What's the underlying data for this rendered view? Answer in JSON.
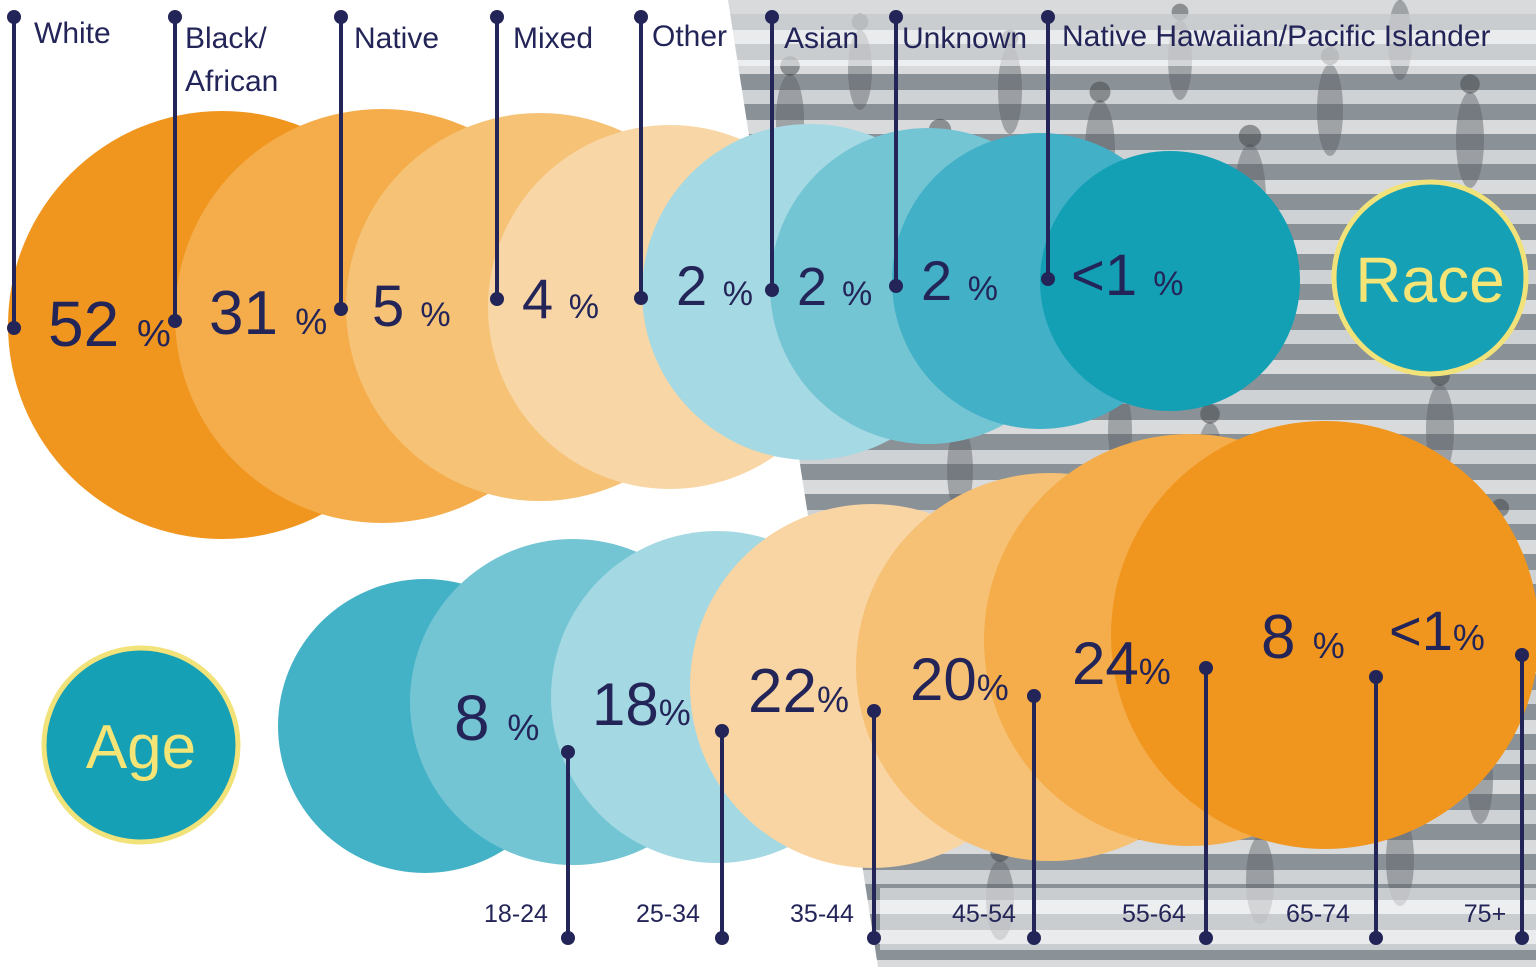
{
  "colors": {
    "ink": "#232457",
    "teal_badge": "#16a0b5",
    "badge_ring": "#f2e27a",
    "badge_text": "#f4e576",
    "race": [
      "#f0961f",
      "#f4ad4a",
      "#f6c276",
      "#f8d6a5",
      "#a5d9e3",
      "#74c5d4",
      "#42b0c6",
      "#13a0b5"
    ],
    "age": [
      "#43b1c6",
      "#73c5d4",
      "#a4d8e3",
      "#f8d5a3",
      "#f6c175",
      "#f4ad4a",
      "#f0961f"
    ]
  },
  "chart_data": [
    {
      "type": "bubble",
      "title": "Race",
      "categories": [
        "White",
        "Black/\nAfrican",
        "Native",
        "Mixed",
        "Other",
        "Asian",
        "Unknown",
        "Native Hawaiian/Pacific Islander"
      ],
      "values": [
        52,
        31,
        5,
        4,
        2,
        2,
        2,
        1
      ],
      "labels": [
        "52",
        "31",
        "5",
        "4",
        "2",
        "2",
        "2",
        "<1"
      ],
      "unit": "%"
    },
    {
      "type": "bubble",
      "title": "Age",
      "categories": [
        "18-24",
        "25-34",
        "35-44",
        "45-54",
        "55-64",
        "65-74",
        "75+"
      ],
      "values": [
        8,
        18,
        22,
        20,
        24,
        8,
        1
      ],
      "labels": [
        "8",
        "18",
        "22",
        "20",
        "24",
        "8",
        "<1"
      ],
      "unit": "%"
    }
  ]
}
